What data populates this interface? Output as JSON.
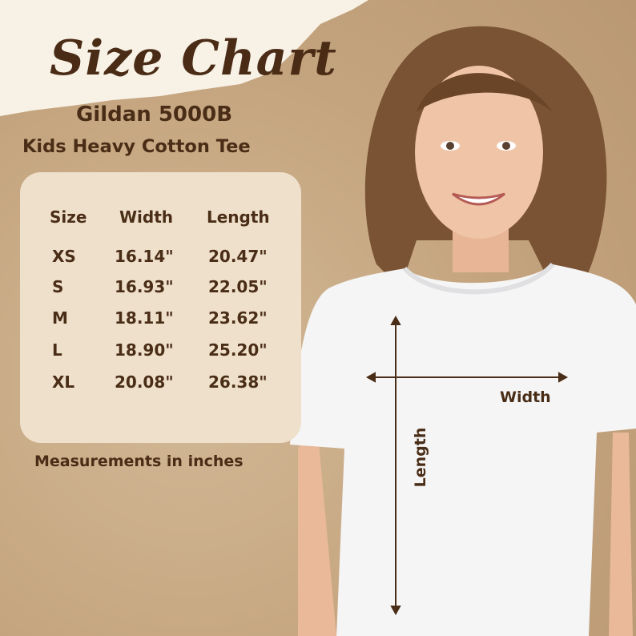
{
  "title": "Size Chart",
  "brand": "Gildan 5000B",
  "product": "Kids Heavy Cotton Tee",
  "table": {
    "headers": [
      "Size",
      "Width",
      "Length"
    ],
    "rows": [
      [
        "XS",
        "16.14\"",
        "20.47\""
      ],
      [
        "S",
        "16.93\"",
        "22.05\""
      ],
      [
        "M",
        "18.11\"",
        "23.62\""
      ],
      [
        "L",
        "18.90\"",
        "25.20\""
      ],
      [
        "XL",
        "20.08\"",
        "26.38\""
      ]
    ]
  },
  "note": "Measurements in inches",
  "diagram": {
    "width_label": "Width",
    "length_label": "Length"
  },
  "colors": {
    "text": "#4a2d16",
    "background": "#c4a47e",
    "panel": "#efe0cc",
    "paper": "#f7f1e6"
  }
}
